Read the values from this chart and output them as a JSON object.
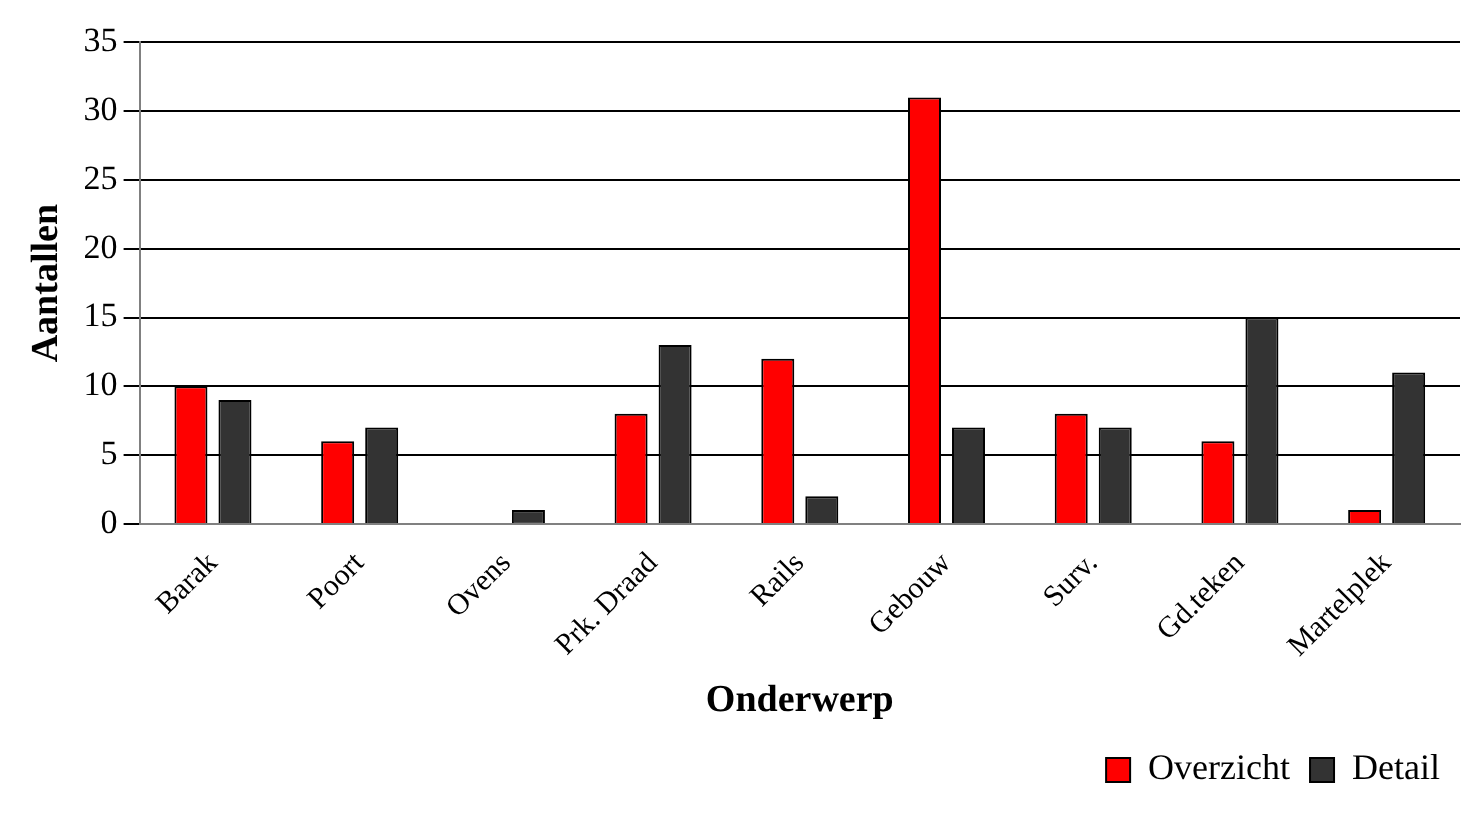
{
  "chart_data": {
    "type": "bar",
    "xlabel": "Onderwerp",
    "ylabel": "Aantallen",
    "categories": [
      "Barak",
      "Poort",
      "Ovens",
      "Prk. Draad",
      "Rails",
      "Gebouw",
      "Surv.",
      "Gd.teken",
      "Martelplek"
    ],
    "series": [
      {
        "name": "Overzicht",
        "color": "#ff0000",
        "values": [
          10,
          6,
          0,
          8,
          12,
          31,
          8,
          6,
          1
        ]
      },
      {
        "name": "Detail",
        "color": "#333333",
        "values": [
          9,
          7,
          1,
          13,
          2,
          7,
          7,
          15,
          11
        ]
      }
    ],
    "ylim": [
      0,
      35
    ],
    "yticks": [
      0,
      5,
      10,
      15,
      20,
      25,
      30,
      35
    ],
    "grid": "y",
    "legend": "bottom right"
  }
}
